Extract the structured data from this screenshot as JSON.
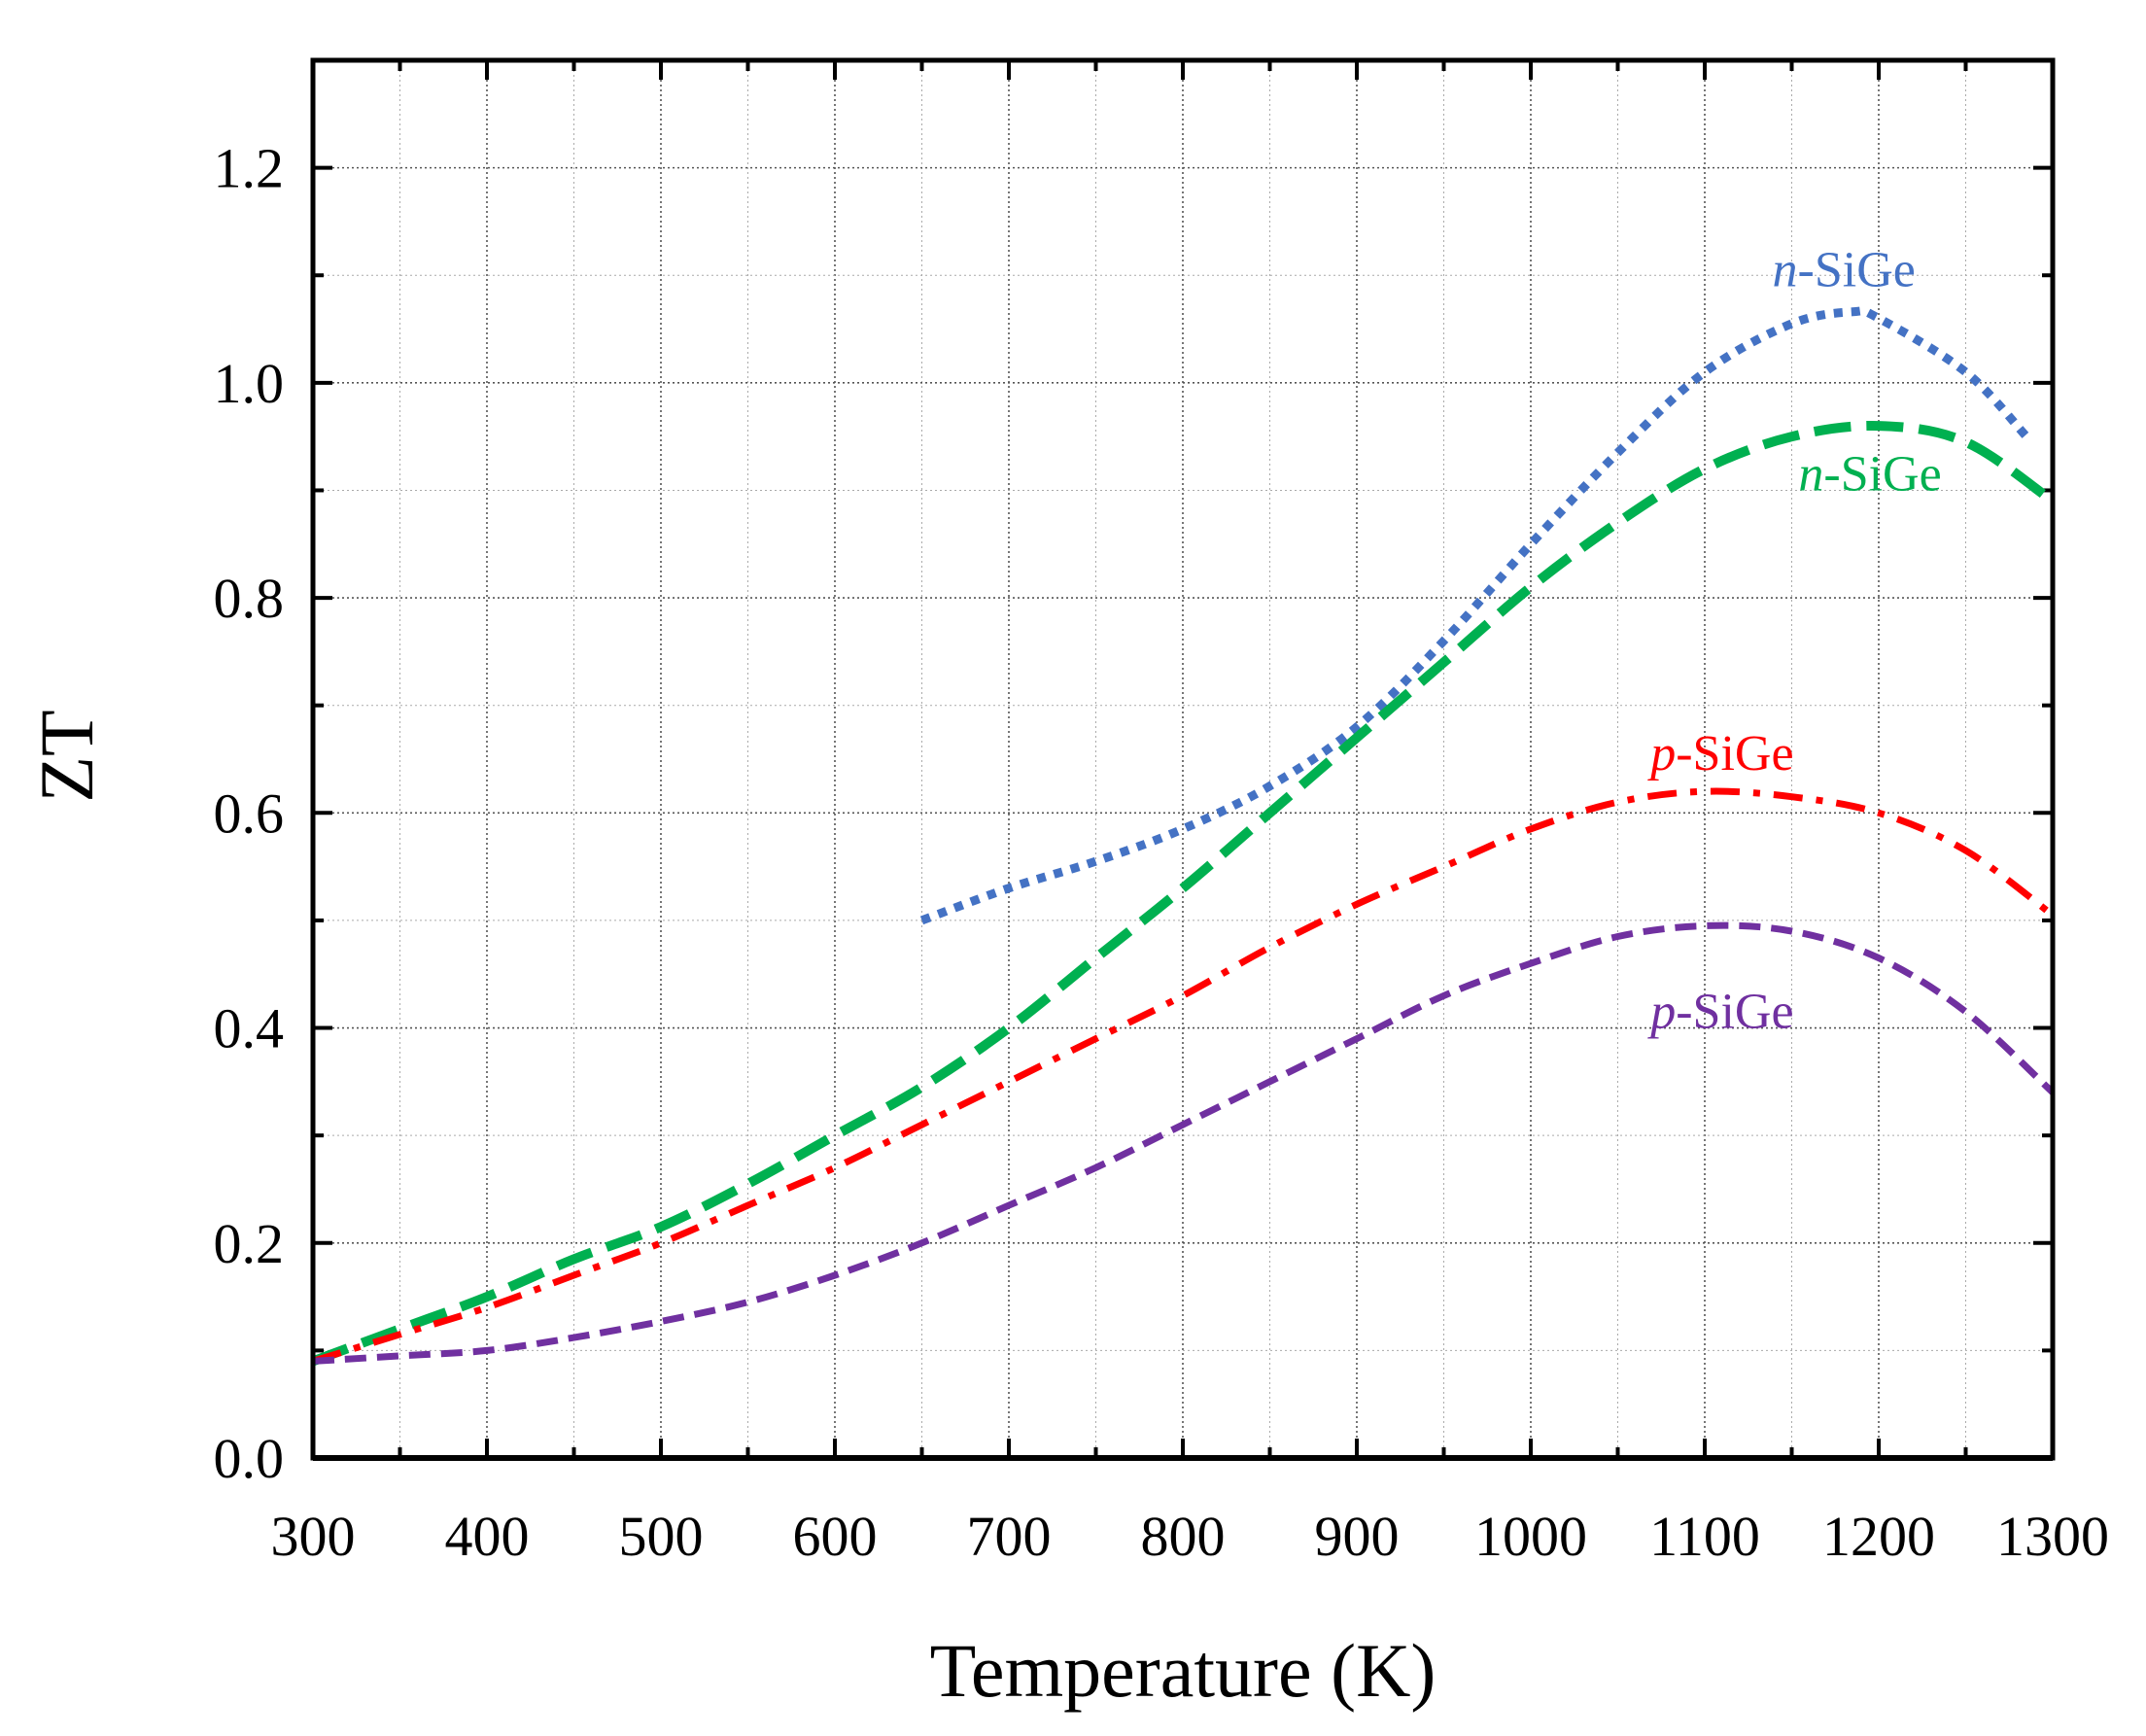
{
  "chart_data": {
    "type": "line",
    "title": "",
    "xlabel": "Temperature (K)",
    "ylabel": "ZT",
    "xlim": [
      300,
      1300
    ],
    "ylim": [
      0,
      1.3
    ],
    "xticks": [
      300,
      400,
      500,
      600,
      700,
      800,
      900,
      1000,
      1100,
      1200,
      1300
    ],
    "yticks": [
      0.0,
      0.2,
      0.4,
      0.6,
      0.8,
      1.0,
      1.2
    ],
    "xtick_labels": [
      "300",
      "400",
      "500",
      "600",
      "700",
      "800",
      "900",
      "1000",
      "1100",
      "1200",
      "1300"
    ],
    "ytick_labels": [
      "0.0",
      "0.2",
      "0.4",
      "0.6",
      "0.8",
      "1.0",
      "1.2"
    ],
    "grid": true,
    "series": [
      {
        "name": "n-SiGe (blue, dotted)",
        "label_prefix": "n",
        "label_suffix": "-SiGe",
        "color": "#4472C4",
        "style": "dotted",
        "x": [
          650,
          700,
          750,
          800,
          850,
          900,
          950,
          1000,
          1050,
          1100,
          1150,
          1185,
          1200,
          1250,
          1285
        ],
        "y": [
          0.5,
          0.53,
          0.555,
          0.585,
          0.625,
          0.68,
          0.76,
          0.85,
          0.935,
          1.01,
          1.055,
          1.066,
          1.06,
          1.01,
          0.95
        ]
      },
      {
        "name": "n-SiGe (green, dashed)",
        "label_prefix": "n",
        "label_suffix": "-SiGe",
        "color": "#00B050",
        "style": "dashed",
        "x": [
          300,
          350,
          400,
          450,
          500,
          550,
          600,
          650,
          700,
          750,
          800,
          850,
          900,
          950,
          1000,
          1050,
          1100,
          1150,
          1200,
          1250,
          1300
        ],
        "y": [
          0.09,
          0.12,
          0.15,
          0.185,
          0.215,
          0.255,
          0.3,
          0.345,
          0.4,
          0.465,
          0.53,
          0.6,
          0.67,
          0.74,
          0.81,
          0.87,
          0.92,
          0.95,
          0.96,
          0.945,
          0.89
        ]
      },
      {
        "name": "p-SiGe (red, dash-dot)",
        "label_prefix": "p",
        "label_suffix": "-SiGe",
        "color": "#FF0000",
        "style": "dashdot",
        "x": [
          300,
          350,
          400,
          450,
          500,
          550,
          600,
          650,
          700,
          750,
          800,
          850,
          900,
          950,
          1000,
          1050,
          1100,
          1150,
          1200,
          1250,
          1300
        ],
        "y": [
          0.09,
          0.115,
          0.14,
          0.17,
          0.2,
          0.235,
          0.27,
          0.31,
          0.35,
          0.39,
          0.43,
          0.475,
          0.515,
          0.55,
          0.585,
          0.61,
          0.62,
          0.615,
          0.6,
          0.565,
          0.505
        ]
      },
      {
        "name": "p-SiGe (purple, dashed)",
        "label_prefix": "p",
        "label_suffix": "-SiGe",
        "color": "#7030A0",
        "style": "shortdash",
        "x": [
          300,
          350,
          400,
          450,
          500,
          550,
          600,
          650,
          700,
          750,
          800,
          850,
          900,
          950,
          1000,
          1050,
          1100,
          1150,
          1200,
          1250,
          1300
        ],
        "y": [
          0.09,
          0.095,
          0.1,
          0.112,
          0.127,
          0.145,
          0.17,
          0.2,
          0.235,
          0.27,
          0.31,
          0.35,
          0.39,
          0.43,
          0.46,
          0.485,
          0.495,
          0.49,
          0.465,
          0.415,
          0.34
        ]
      }
    ]
  },
  "series_labels": [
    {
      "series": 0,
      "prefix": "n",
      "suffix": "-SiGe",
      "at": [
        1180,
        1.09
      ]
    },
    {
      "series": 1,
      "prefix": "n",
      "suffix": "-SiGe",
      "at": [
        1195,
        0.9
      ]
    },
    {
      "series": 2,
      "prefix": "p",
      "suffix": "-SiGe",
      "at": [
        1110,
        0.64
      ]
    },
    {
      "series": 3,
      "prefix": "p",
      "suffix": "-SiGe",
      "at": [
        1110,
        0.4
      ]
    }
  ]
}
